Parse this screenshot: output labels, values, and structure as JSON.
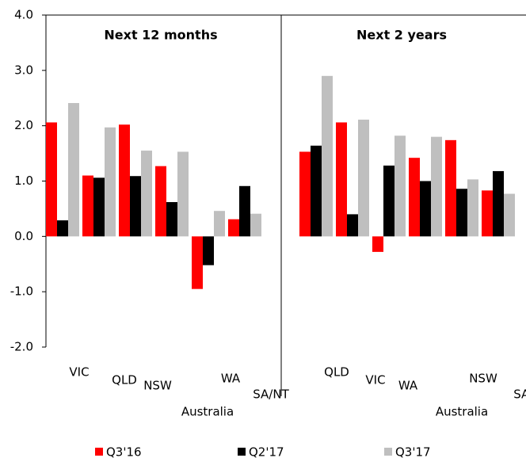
{
  "chart_data": {
    "type": "bar",
    "ylim": [
      -2.0,
      4.0
    ],
    "yticks": [
      {
        "value": -2,
        "label": "-2.0"
      },
      {
        "value": -1,
        "label": "-1.0"
      },
      {
        "value": 0,
        "label": "0.0"
      },
      {
        "value": 1,
        "label": "1.0"
      },
      {
        "value": 2,
        "label": "2.0"
      },
      {
        "value": 3,
        "label": "3.0"
      },
      {
        "value": 4,
        "label": "4.0"
      }
    ],
    "series": [
      {
        "name": "Q3'16",
        "color": "#ff0000"
      },
      {
        "name": "Q2'17",
        "color": "#000000"
      },
      {
        "name": "Q3'17",
        "color": "#bfbfbf"
      }
    ],
    "panels": [
      {
        "title": "Next 12 months",
        "categories": [
          "VIC",
          "QLD",
          "NSW",
          "Australia",
          "WA",
          "SA/NT"
        ],
        "values": [
          [
            2.06,
            1.1,
            2.02,
            1.27,
            -0.95,
            0.31
          ],
          [
            0.29,
            1.06,
            1.09,
            0.62,
            -0.52,
            0.91
          ],
          [
            2.41,
            1.97,
            1.55,
            1.53,
            0.46,
            0.41
          ]
        ]
      },
      {
        "title": "Next 2 years",
        "categories": [
          "QLD",
          "VIC",
          "WA",
          "Australia",
          "NSW",
          "SA/NT"
        ],
        "values": [
          [
            1.53,
            2.06,
            -0.28,
            1.42,
            1.74,
            0.83
          ],
          [
            1.64,
            0.4,
            1.28,
            1.0,
            0.86,
            1.18
          ],
          [
            2.9,
            2.11,
            1.82,
            1.8,
            1.03,
            0.77
          ]
        ]
      }
    ]
  }
}
